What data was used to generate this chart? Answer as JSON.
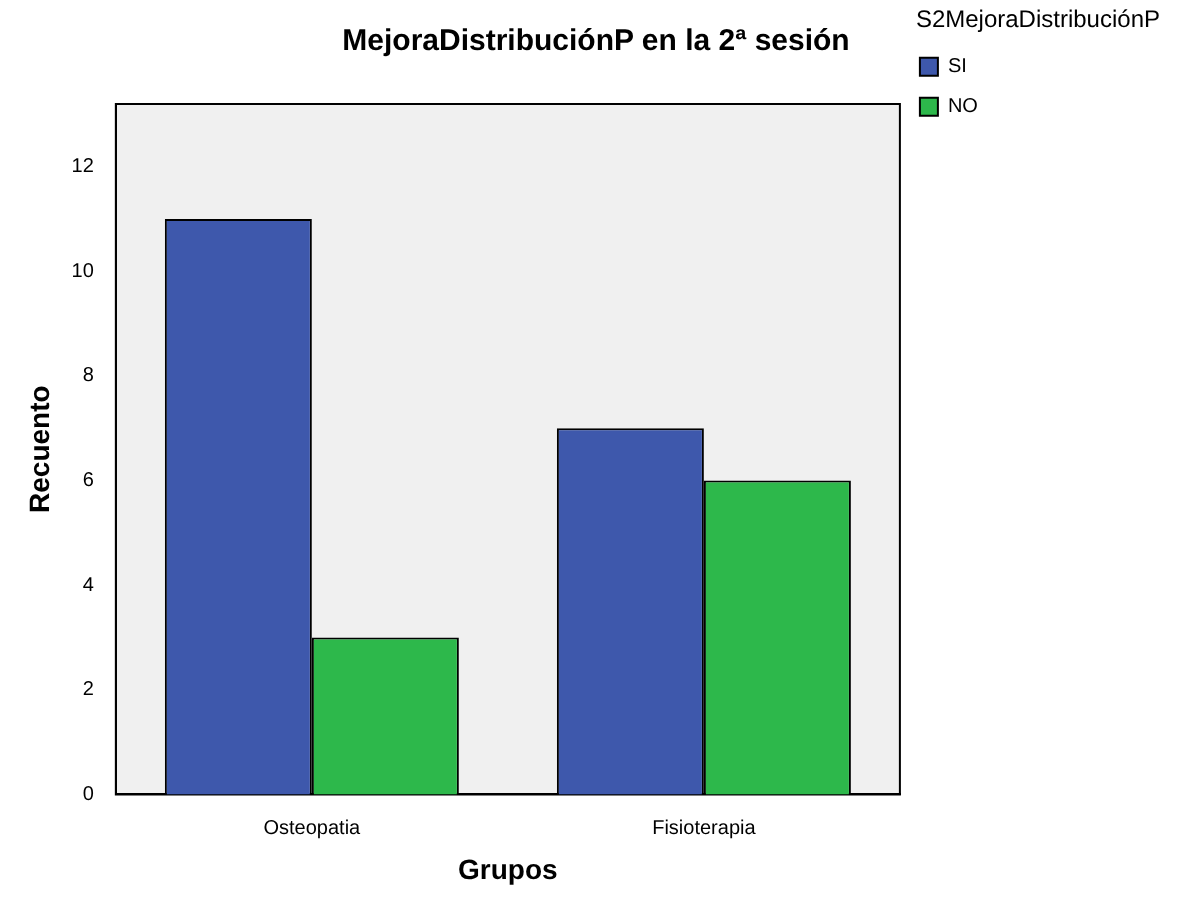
{
  "chart_data": {
    "type": "bar",
    "title": "MejoraDistribuciónP en la 2ª sesión",
    "xlabel": "Grupos",
    "ylabel": "Recuento",
    "legend_title": "S2MejoraDistribuciónP",
    "categories": [
      "Osteopatia",
      "Fisioterapia"
    ],
    "series": [
      {
        "name": "SI",
        "color": "#3e58ac",
        "values": [
          11,
          7
        ]
      },
      {
        "name": "NO",
        "color": "#2db84b",
        "values": [
          3,
          6
        ]
      }
    ],
    "ylim": [
      0,
      13.2
    ],
    "yticks": [
      0,
      2,
      4,
      6,
      8,
      10,
      12
    ],
    "grid": false,
    "legend": "top right"
  }
}
